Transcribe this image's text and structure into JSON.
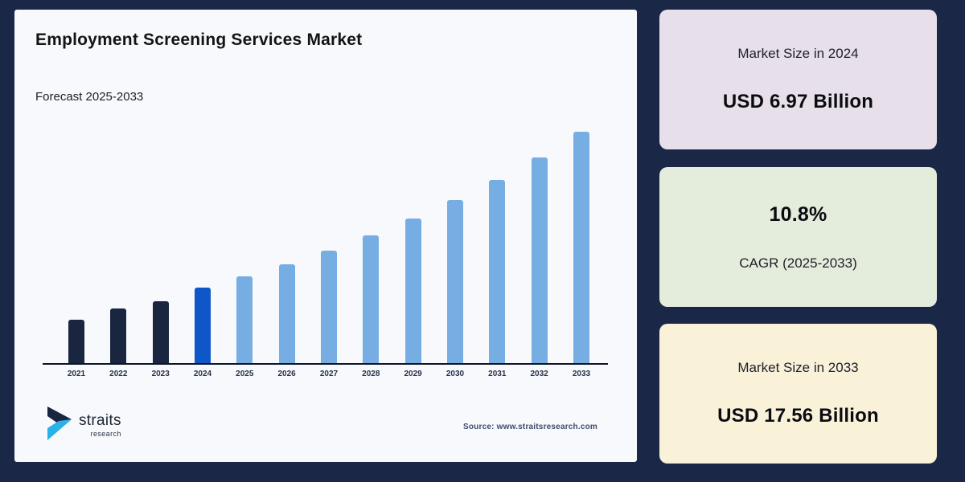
{
  "header": {
    "title": "Employment Screening Services Market",
    "subtitle": "Forecast 2025-2033"
  },
  "chart_data": {
    "type": "bar",
    "title": "Employment Screening Services Market",
    "categories": [
      "2021",
      "2022",
      "2023",
      "2024",
      "2025",
      "2026",
      "2027",
      "2028",
      "2029",
      "2030",
      "2031",
      "2032",
      "2033"
    ],
    "values": [
      4.8,
      5.55,
      6.05,
      6.97,
      7.72,
      8.56,
      9.48,
      10.51,
      11.64,
      12.9,
      14.29,
      15.84,
      17.56
    ],
    "unit": "USD Billion",
    "bar_types": [
      "historical",
      "historical",
      "historical",
      "current",
      "forecast",
      "forecast",
      "forecast",
      "forecast",
      "forecast",
      "forecast",
      "forecast",
      "forecast",
      "forecast"
    ],
    "colors": {
      "historical": "#1a2540",
      "current": "#0f56c8",
      "forecast": "#76aee4",
      "axis": "#0d1526"
    },
    "xlabel": "",
    "ylabel": "",
    "grid": false,
    "legend": false
  },
  "panels": [
    {
      "label": "Market Size in 2024",
      "value": "USD 6.97 Billion",
      "background": "#e7e0ea"
    },
    {
      "label": "CAGR (2025-2033)",
      "value": "10.8%",
      "background": "#e4eddb"
    },
    {
      "label": "Market Size in 2033",
      "value": "USD 17.56 Billion",
      "background": "#f9f2d9"
    }
  ],
  "footer": {
    "logo_name": "straits",
    "logo_sub": "research",
    "source": "Source: www.straitsresearch.com"
  },
  "theme": {
    "page_background": "#1b2747",
    "card_background": "#f7f9fc",
    "logo_dark": "#1a2540",
    "logo_cyan": "#29b2e8"
  }
}
